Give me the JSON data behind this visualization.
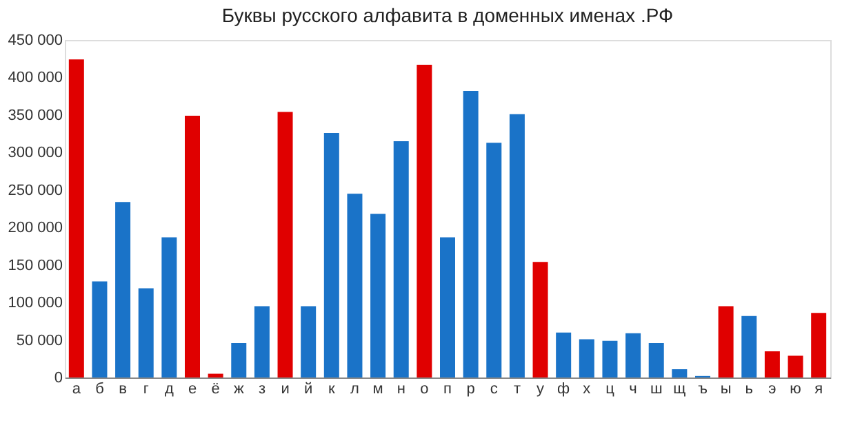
{
  "chart_data": {
    "type": "bar",
    "title": "Буквы русского алфавита в доменных именах .РФ",
    "categories": [
      "а",
      "б",
      "в",
      "г",
      "д",
      "е",
      "ё",
      "ж",
      "з",
      "и",
      "й",
      "к",
      "л",
      "м",
      "н",
      "о",
      "п",
      "р",
      "с",
      "т",
      "у",
      "ф",
      "х",
      "ц",
      "ч",
      "ш",
      "щ",
      "ъ",
      "ы",
      "ь",
      "э",
      "ю",
      "я"
    ],
    "values": [
      424000,
      128000,
      234000,
      119000,
      187000,
      349000,
      5000,
      46000,
      95000,
      354000,
      95000,
      326000,
      245000,
      218000,
      315000,
      417000,
      187000,
      382000,
      313000,
      351000,
      154000,
      60000,
      51000,
      49000,
      59000,
      46000,
      11000,
      2000,
      95000,
      82000,
      35000,
      29000,
      86000
    ],
    "colors": [
      "#e00000",
      "#1a73c8",
      "#1a73c8",
      "#1a73c8",
      "#1a73c8",
      "#e00000",
      "#e00000",
      "#1a73c8",
      "#1a73c8",
      "#e00000",
      "#1a73c8",
      "#1a73c8",
      "#1a73c8",
      "#1a73c8",
      "#1a73c8",
      "#e00000",
      "#1a73c8",
      "#1a73c8",
      "#1a73c8",
      "#1a73c8",
      "#e00000",
      "#1a73c8",
      "#1a73c8",
      "#1a73c8",
      "#1a73c8",
      "#1a73c8",
      "#1a73c8",
      "#1a73c8",
      "#e00000",
      "#1a73c8",
      "#e00000",
      "#e00000",
      "#e00000"
    ],
    "ylim": [
      0,
      450000
    ],
    "yticks": [
      0,
      {
        "value": 50000,
        "label": "50 000"
      },
      {
        "value": 100000,
        "label": "100 000"
      },
      {
        "value": 150000,
        "label": "150 000"
      },
      {
        "value": 200000,
        "label": "200 000"
      },
      {
        "value": 250000,
        "label": "250 000"
      },
      {
        "value": 300000,
        "label": "300 000"
      },
      {
        "value": 350000,
        "label": "350 000"
      },
      {
        "value": 400000,
        "label": "400 000"
      },
      {
        "value": 450000,
        "label": "450 000"
      }
    ],
    "grid": false
  }
}
